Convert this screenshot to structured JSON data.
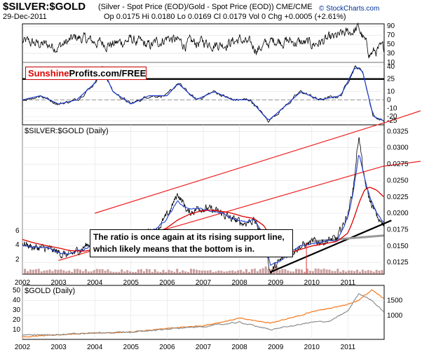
{
  "header": {
    "title": "$SILVER:$GOLD",
    "subtitle": "(Silver - Spot Price (EOD)/Gold - Spot Price (EOD))  CME/CME",
    "date": "29-Dec-2011",
    "quotes": "Op 0.0175  Hi 0.0180  Lo 0.0169  Cl 0.0179  Vol 0  Chg +0.0005 (+2.61%)",
    "copyright": "© StockCharts.com"
  },
  "watermark": {
    "part1": "Sunshine",
    "part2": "Profits.com/FREE"
  },
  "annotation": "The ratio is once again at its rising support line, which likely means that the bottom is in.",
  "colors": {
    "price": "#000000",
    "ma_short": "#1f3fd0",
    "ma_long": "#dd0000",
    "channel": "#ee2222",
    "support": "#000000",
    "gold": "#f07010",
    "silver_proxy": "#888888",
    "volume": "#a05050"
  },
  "chart_data": [
    {
      "type": "line",
      "name": "rsi",
      "y_ticks": [
        10,
        30,
        50,
        70,
        90
      ],
      "ylim": [
        10,
        95
      ],
      "x": [
        2002.0,
        2002.5,
        2003.0,
        2003.5,
        2004.0,
        2004.5,
        2005.0,
        2005.5,
        2006.0,
        2006.5,
        2007.0,
        2007.5,
        2008.0,
        2008.5,
        2009.0,
        2009.5,
        2010.0,
        2010.5,
        2011.0,
        2011.3,
        2011.6,
        2011.99
      ],
      "values": [
        55,
        50,
        45,
        65,
        55,
        50,
        60,
        45,
        65,
        50,
        55,
        50,
        60,
        40,
        60,
        55,
        50,
        60,
        75,
        85,
        30,
        40
      ]
    },
    {
      "type": "line",
      "name": "momentum",
      "y_ticks": [
        -25,
        -20,
        -10,
        0,
        10,
        25,
        40
      ],
      "ylim": [
        -30,
        45
      ],
      "reference_line": 25,
      "x": [
        2002.0,
        2002.5,
        2003.0,
        2003.5,
        2004.0,
        2004.2,
        2004.5,
        2005.0,
        2005.5,
        2006.0,
        2006.3,
        2006.8,
        2007.3,
        2007.8,
        2008.3,
        2008.8,
        2009.2,
        2009.7,
        2010.2,
        2010.8,
        2011.2,
        2011.4,
        2011.7,
        2011.99
      ],
      "values": [
        0,
        5,
        -5,
        0,
        20,
        40,
        10,
        -5,
        5,
        5,
        20,
        0,
        10,
        0,
        0,
        -25,
        -10,
        10,
        0,
        5,
        40,
        35,
        -20,
        -25
      ]
    },
    {
      "type": "line",
      "name": "ratio",
      "label": "$SILVER:$GOLD (Daily)",
      "y_ticks": [
        0.0125,
        0.015,
        0.0175,
        0.02,
        0.0225,
        0.025,
        0.0275,
        0.03,
        0.0325
      ],
      "ylim": [
        0.0107,
        0.0335
      ],
      "x_ticks": [
        "2002",
        "2003",
        "2004",
        "2005",
        "2006",
        "2007",
        "2008",
        "2009",
        "2010",
        "2011"
      ],
      "left_ticks": [
        "6",
        "4",
        "2"
      ],
      "x": [
        2002.0,
        2002.3,
        2002.7,
        2003.0,
        2003.3,
        2003.7,
        2004.0,
        2004.25,
        2004.5,
        2004.8,
        2005.1,
        2005.4,
        2005.7,
        2006.0,
        2006.3,
        2006.6,
        2006.9,
        2007.2,
        2007.5,
        2007.8,
        2008.1,
        2008.4,
        2008.7,
        2008.85,
        2009.1,
        2009.4,
        2009.7,
        2010.0,
        2010.4,
        2010.7,
        2011.0,
        2011.15,
        2011.3,
        2011.45,
        2011.6,
        2011.8,
        2011.99
      ],
      "values": [
        0.0155,
        0.0148,
        0.0145,
        0.014,
        0.0135,
        0.0148,
        0.016,
        0.017,
        0.015,
        0.0158,
        0.0165,
        0.017,
        0.0175,
        0.0195,
        0.023,
        0.02,
        0.021,
        0.0205,
        0.02,
        0.019,
        0.0185,
        0.019,
        0.016,
        0.011,
        0.0125,
        0.0142,
        0.015,
        0.0155,
        0.0158,
        0.016,
        0.02,
        0.024,
        0.032,
        0.025,
        0.022,
        0.0195,
        0.0179
      ],
      "ma_short": [
        0.0152,
        0.015,
        0.0146,
        0.0142,
        0.0138,
        0.0145,
        0.0156,
        0.0165,
        0.0155,
        0.0157,
        0.0164,
        0.017,
        0.0176,
        0.0192,
        0.0218,
        0.0205,
        0.0207,
        0.0204,
        0.02,
        0.0192,
        0.0187,
        0.0188,
        0.0165,
        0.012,
        0.0123,
        0.014,
        0.0149,
        0.0154,
        0.0157,
        0.016,
        0.0195,
        0.0232,
        0.029,
        0.0255,
        0.0225,
        0.02,
        0.0185
      ],
      "ma_long": [
        0.016,
        0.0155,
        0.015,
        0.0147,
        0.0143,
        0.0142,
        0.0145,
        0.0155,
        0.016,
        0.016,
        0.0162,
        0.0165,
        0.017,
        0.0178,
        0.019,
        0.0198,
        0.0203,
        0.0205,
        0.0203,
        0.02,
        0.0195,
        0.0192,
        0.018,
        0.016,
        0.0145,
        0.014,
        0.0145,
        0.015,
        0.0154,
        0.0157,
        0.017,
        0.019,
        0.0215,
        0.0235,
        0.024,
        0.0235,
        0.0225
      ],
      "trendlines": [
        {
          "name": "upper-channel",
          "x": [
            2004.0,
            2011.99
          ],
          "values": [
            0.02,
            0.0338
          ]
        },
        {
          "name": "lower-channel",
          "x": [
            2003.0,
            2011.99
          ],
          "values": [
            0.0128,
            0.0272
          ]
        },
        {
          "name": "rising-support",
          "x": [
            2008.85,
            2012.2
          ],
          "values": [
            0.011,
            0.0189
          ]
        },
        {
          "name": "support-projection",
          "x": [
            2010.0,
            2011.99
          ],
          "values": [
            0.0157,
            0.0166
          ]
        }
      ]
    },
    {
      "type": "line",
      "name": "gold",
      "label": "$GOLD (Daily)",
      "y_ticks_left": [
        10,
        20,
        30,
        40,
        50
      ],
      "y_ticks_right": [
        1000,
        1500
      ],
      "x_ticks": [
        "2002",
        "2003",
        "2004",
        "2005",
        "2006",
        "2007",
        "2008",
        "2009",
        "2010",
        "2011"
      ],
      "x": [
        2002.0,
        2003.0,
        2004.0,
        2005.0,
        2006.0,
        2007.0,
        2008.0,
        2008.85,
        2009.5,
        2010.0,
        2010.5,
        2011.0,
        2011.3,
        2011.65,
        2011.99
      ],
      "series": [
        {
          "values": [
            280,
            350,
            410,
            440,
            560,
            660,
            900,
            750,
            930,
            1120,
            1240,
            1380,
            1500,
            1850,
            1560
          ]
        },
        {
          "values": [
            4.6,
            4.9,
            6.5,
            7.3,
            10.5,
            13.0,
            17.5,
            10.0,
            14.0,
            17.5,
            18.5,
            29.0,
            47.0,
            40.0,
            28.0
          ]
        }
      ]
    }
  ]
}
